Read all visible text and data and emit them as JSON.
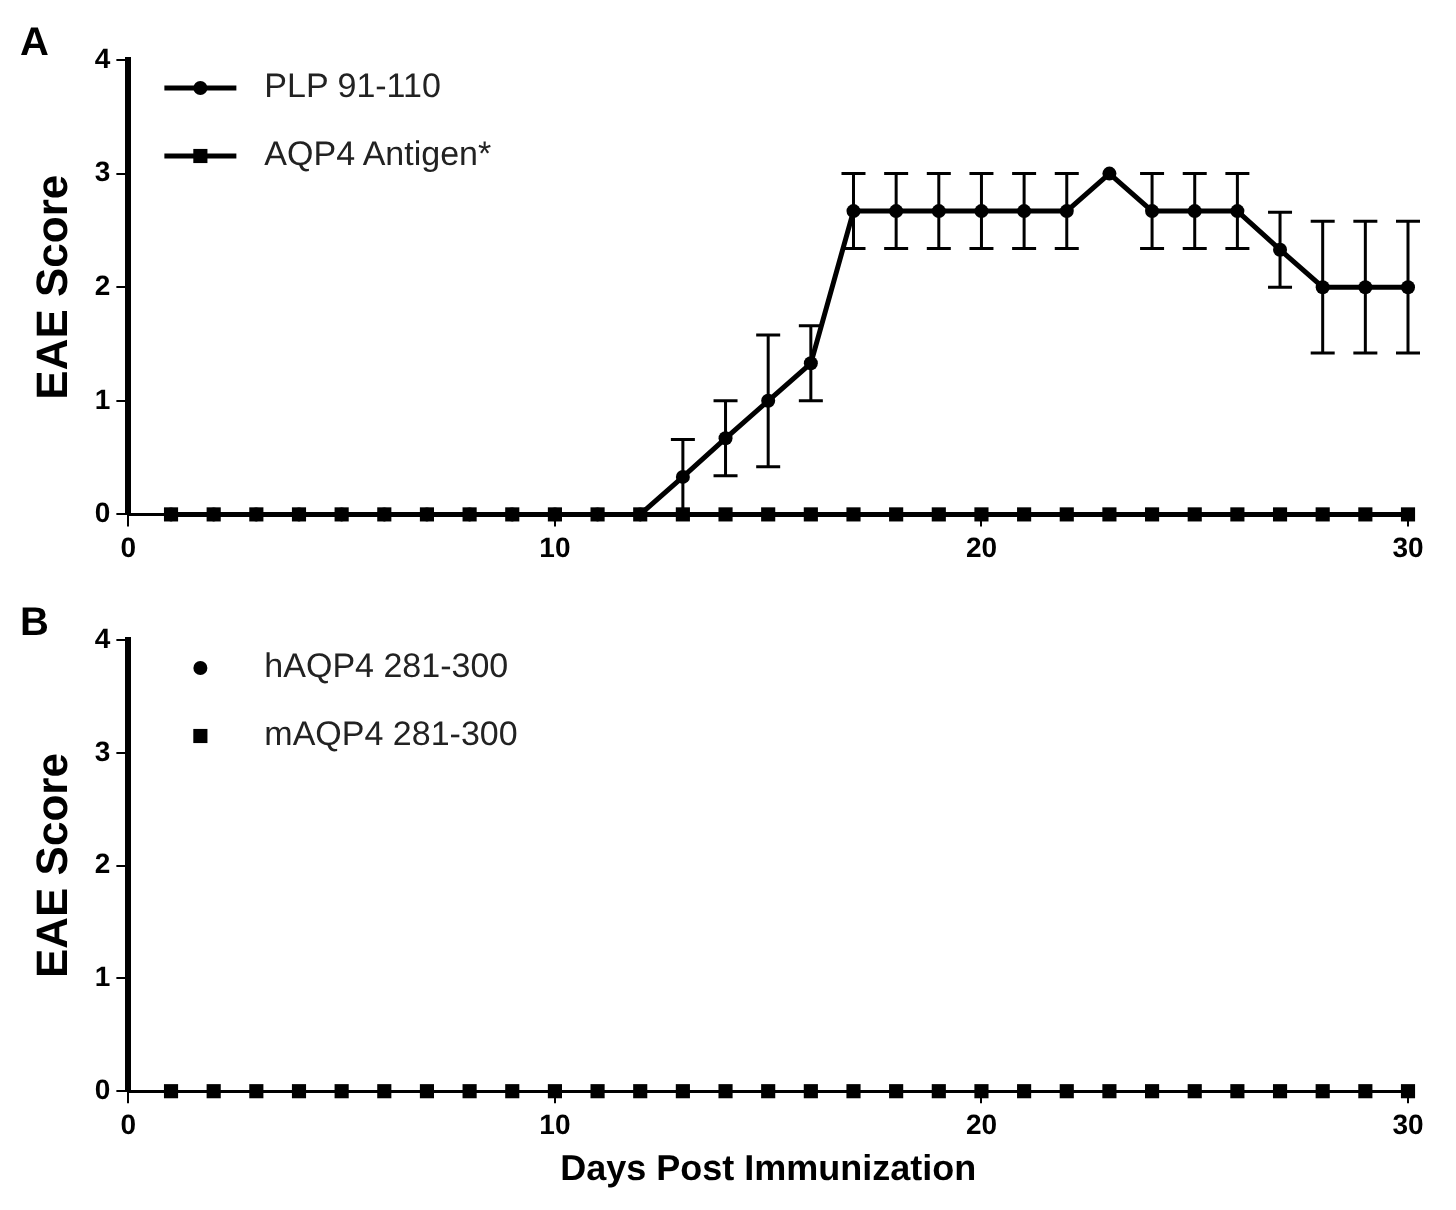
{
  "chart_data": [
    {
      "type": "line",
      "title": "A",
      "ylabel": "EAE Score",
      "x": [
        1,
        2,
        3,
        4,
        5,
        6,
        7,
        8,
        9,
        10,
        11,
        12,
        13,
        14,
        15,
        16,
        17,
        18,
        19,
        20,
        21,
        22,
        23,
        24,
        25,
        26,
        27,
        28,
        29,
        30
      ],
      "xlim": [
        0,
        30
      ],
      "xticks": [
        0,
        10,
        20,
        30
      ],
      "ylim": [
        0,
        4
      ],
      "yticks": [
        0,
        1,
        2,
        3,
        4
      ],
      "grid": false,
      "legend": "top left",
      "series": [
        {
          "name": "PLP 91-110",
          "color": "#000000",
          "marker": "circle",
          "values": [
            0,
            0,
            0,
            0,
            0,
            0,
            0,
            0,
            0,
            0,
            0,
            0,
            0.33,
            0.67,
            1.0,
            1.33,
            2.67,
            2.67,
            2.67,
            2.67,
            2.67,
            2.67,
            3.0,
            2.67,
            2.67,
            2.67,
            2.33,
            2.0,
            2.0,
            2.0
          ],
          "errors": [
            null,
            null,
            null,
            null,
            null,
            null,
            null,
            null,
            null,
            null,
            null,
            null,
            0.33,
            0.33,
            0.58,
            0.33,
            0.33,
            0.33,
            0.33,
            0.33,
            0.33,
            0.33,
            null,
            0.33,
            0.33,
            0.33,
            0.33,
            0.58,
            0.58,
            0.58
          ]
        },
        {
          "name": "AQP4 Antigen*",
          "color": "#000000",
          "marker": "square",
          "values": [
            0,
            0,
            0,
            0,
            0,
            0,
            0,
            0,
            0,
            0,
            0,
            0,
            0,
            0,
            0,
            0,
            0,
            0,
            0,
            0,
            0,
            0,
            0,
            0,
            0,
            0,
            0,
            0,
            0,
            0
          ]
        }
      ]
    },
    {
      "type": "scatter",
      "title": "B",
      "xlabel": "Days Post Immunization",
      "ylabel": "EAE Score",
      "x": [
        1,
        2,
        3,
        4,
        5,
        6,
        7,
        8,
        9,
        10,
        11,
        12,
        13,
        14,
        15,
        16,
        17,
        18,
        19,
        20,
        21,
        22,
        23,
        24,
        25,
        26,
        27,
        28,
        29,
        30
      ],
      "xlim": [
        0,
        30
      ],
      "xticks": [
        0,
        10,
        20,
        30
      ],
      "ylim": [
        0,
        4
      ],
      "yticks": [
        0,
        1,
        2,
        3,
        4
      ],
      "grid": false,
      "legend": "top left",
      "series": [
        {
          "name": "hAQP4 281-300",
          "color": "#000000",
          "marker": "circle",
          "values": [
            null,
            null,
            null,
            null,
            null,
            null,
            null,
            null,
            null,
            null,
            null,
            null,
            null,
            null,
            null,
            null,
            null,
            null,
            null,
            null,
            null,
            null,
            null,
            null,
            null,
            null,
            null,
            null,
            null,
            null
          ]
        },
        {
          "name": "mAQP4 281-300",
          "color": "#000000",
          "marker": "square",
          "values": [
            0,
            0,
            0,
            0,
            0,
            0,
            0,
            0,
            0,
            0,
            0,
            0,
            0,
            0,
            0,
            0,
            0,
            0,
            0,
            0,
            0,
            0,
            0,
            0,
            0,
            0,
            0,
            0,
            0,
            0
          ]
        }
      ]
    }
  ]
}
